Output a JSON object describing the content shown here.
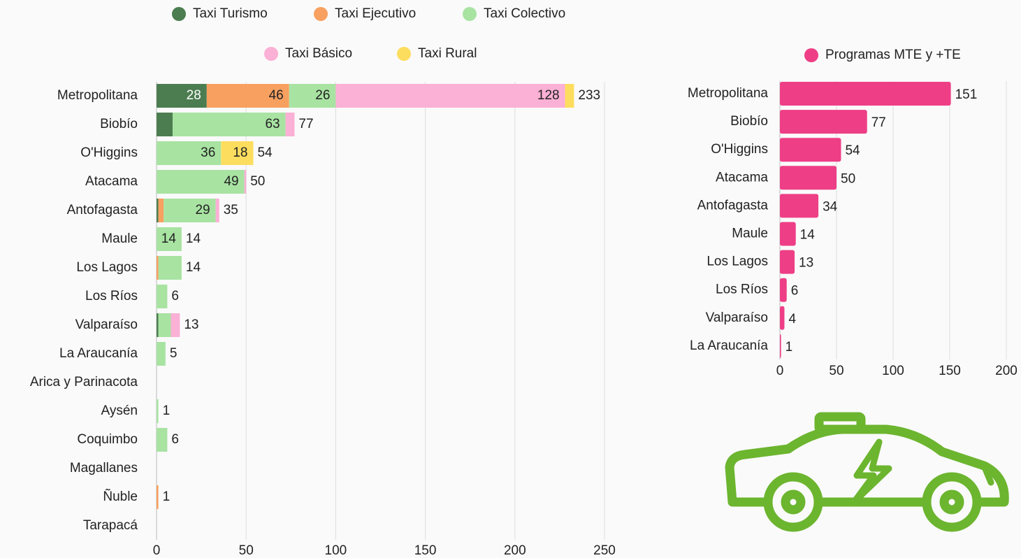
{
  "chart_data": [
    {
      "type": "stacked_bar",
      "categories": [
        "Metropolitana",
        "Biobío",
        "O'Higgins",
        "Atacama",
        "Antofagasta",
        "Maule",
        "Los Lagos",
        "Los Ríos",
        "Valparaíso",
        "La Araucanía",
        "Arica y Parinacota",
        "Aysén",
        "Coquimbo",
        "Magallanes",
        "Ñuble",
        "Tarapacá"
      ],
      "series": [
        {
          "name": "Taxi Turismo",
          "color": "#4c7d50",
          "values": [
            28,
            9,
            0,
            0,
            1,
            0,
            0,
            0,
            1,
            0,
            0,
            0,
            0,
            0,
            0,
            0
          ]
        },
        {
          "name": "Taxi Ejecutivo",
          "color": "#f8a060",
          "values": [
            46,
            0,
            0,
            0,
            3,
            0,
            1,
            0,
            0,
            0,
            0,
            0,
            0,
            0,
            1,
            0
          ]
        },
        {
          "name": "Taxi Colectivo",
          "color": "#a8e3a2",
          "values": [
            26,
            63,
            36,
            49,
            29,
            14,
            13,
            6,
            7,
            5,
            0,
            1,
            6,
            0,
            0,
            0
          ]
        },
        {
          "name": "Taxi Básico",
          "color": "#fbb0d5",
          "values": [
            128,
            5,
            0,
            1,
            2,
            0,
            0,
            0,
            5,
            0,
            0,
            0,
            0,
            0,
            0,
            0
          ]
        },
        {
          "name": "Taxi Rural",
          "color": "#fddd5e",
          "values": [
            5,
            0,
            18,
            0,
            0,
            0,
            0,
            0,
            0,
            0,
            0,
            0,
            0,
            0,
            0,
            0
          ]
        }
      ],
      "totals": [
        233,
        77,
        54,
        50,
        35,
        14,
        14,
        6,
        13,
        5,
        null,
        1,
        6,
        null,
        1,
        null
      ],
      "xlim": [
        0,
        250
      ],
      "xticks": [
        0,
        50,
        100,
        150,
        200,
        250
      ],
      "grid": true
    },
    {
      "type": "bar",
      "categories": [
        "Metropolitana",
        "Biobío",
        "O'Higgins",
        "Atacama",
        "Antofagasta",
        "Maule",
        "Los Lagos",
        "Los Ríos",
        "Valparaíso",
        "La Araucanía"
      ],
      "series": [
        {
          "name": "Programas MTE y +TE",
          "color": "#ee3e86",
          "values": [
            151,
            77,
            54,
            50,
            34,
            14,
            13,
            6,
            4,
            1
          ]
        }
      ],
      "xlim": [
        0,
        200
      ],
      "xticks": [
        0,
        50,
        100,
        150,
        200
      ],
      "grid": true
    }
  ]
}
